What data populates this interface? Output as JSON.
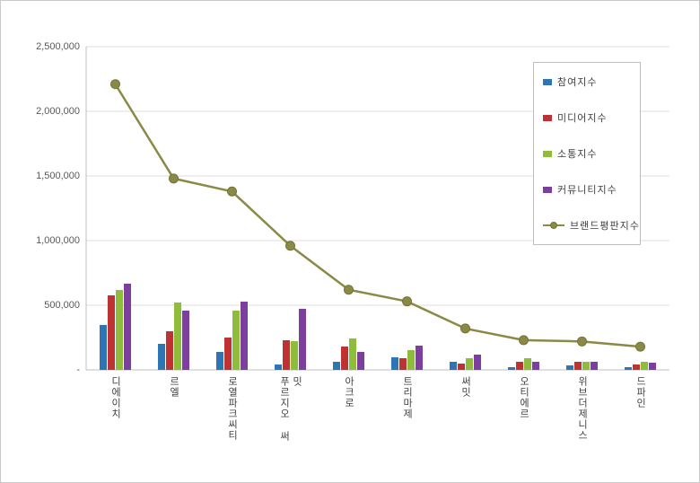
{
  "chart_data": {
    "type": "bar+line",
    "title": "",
    "categories": [
      "디에이치",
      "르엘",
      "로열파크씨티",
      "푸르지오 써밋",
      "아크로",
      "트리마제",
      "써밋",
      "오티에르",
      "위브더제니스",
      "드파인"
    ],
    "series": [
      {
        "name": "참여지수",
        "type": "bar",
        "color": "#2e75b6",
        "values": [
          350000,
          200000,
          140000,
          40000,
          60000,
          100000,
          60000,
          20000,
          35000,
          20000
        ]
      },
      {
        "name": "미디어지수",
        "type": "bar",
        "color": "#be3232",
        "values": [
          575000,
          300000,
          250000,
          230000,
          180000,
          90000,
          50000,
          60000,
          65000,
          45000
        ]
      },
      {
        "name": "소통지수",
        "type": "bar",
        "color": "#8fbc3b",
        "values": [
          620000,
          520000,
          460000,
          220000,
          240000,
          150000,
          90000,
          90000,
          60000,
          60000
        ]
      },
      {
        "name": "커뮤니티지수",
        "type": "bar",
        "color": "#7d3f9d",
        "values": [
          665000,
          460000,
          530000,
          470000,
          140000,
          190000,
          120000,
          60000,
          60000,
          55000
        ]
      },
      {
        "name": "브랜드평판지수",
        "type": "line",
        "color": "#8a8a46",
        "marker_edge_color": "#72723a",
        "values": [
          2210000,
          1480000,
          1380000,
          960000,
          620000,
          530000,
          320000,
          230000,
          220000,
          180000
        ]
      }
    ],
    "ylim": [
      0,
      2500000
    ],
    "ytick_interval": 500000,
    "ytick_labels": [
      "-",
      "500,000",
      "1,000,000",
      "1,500,000",
      "2,000,000",
      "2,500,000"
    ],
    "grid": true,
    "gridline_color": "#dcdcdc",
    "axis_line_color": "#bfbfbf",
    "legend_position": "right-top",
    "legend_entries": [
      "참여지수",
      "미디어지수",
      "소통지수",
      "커뮤니티지수",
      "브랜드평판지수"
    ]
  }
}
